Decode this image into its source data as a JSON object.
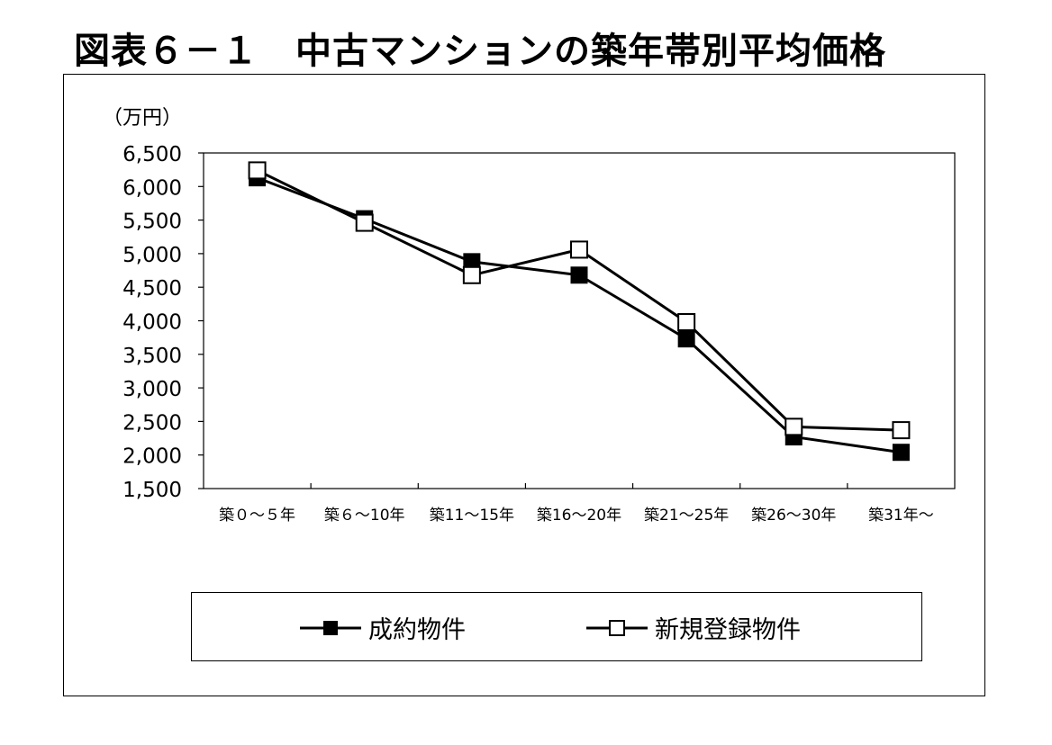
{
  "title": "図表６－１　中古マンションの築年帯別平均価格",
  "chart_data": {
    "type": "line",
    "unit_label": "（万円）",
    "categories": [
      "築０～５年",
      "築６～10年",
      "築11～15年",
      "築16～20年",
      "築21～25年",
      "築26～30年",
      "築31年～"
    ],
    "y_tick_labels": [
      "6,500",
      "6,000",
      "5,500",
      "5,000",
      "4,500",
      "4,000",
      "3,500",
      "3,000",
      "2,500",
      "2,000",
      "1,500"
    ],
    "ylim": [
      1500,
      6500
    ],
    "grid": false,
    "legend_position": "bottom",
    "series": [
      {
        "name": "成約物件",
        "marker": "filled-square",
        "color": "#000000",
        "values": [
          6130,
          5520,
          4880,
          4680,
          3730,
          2270,
          2040
        ]
      },
      {
        "name": "新規登録物件",
        "marker": "open-square",
        "color": "#000000",
        "values": [
          6240,
          5460,
          4680,
          5060,
          3980,
          2420,
          2370
        ]
      }
    ]
  }
}
